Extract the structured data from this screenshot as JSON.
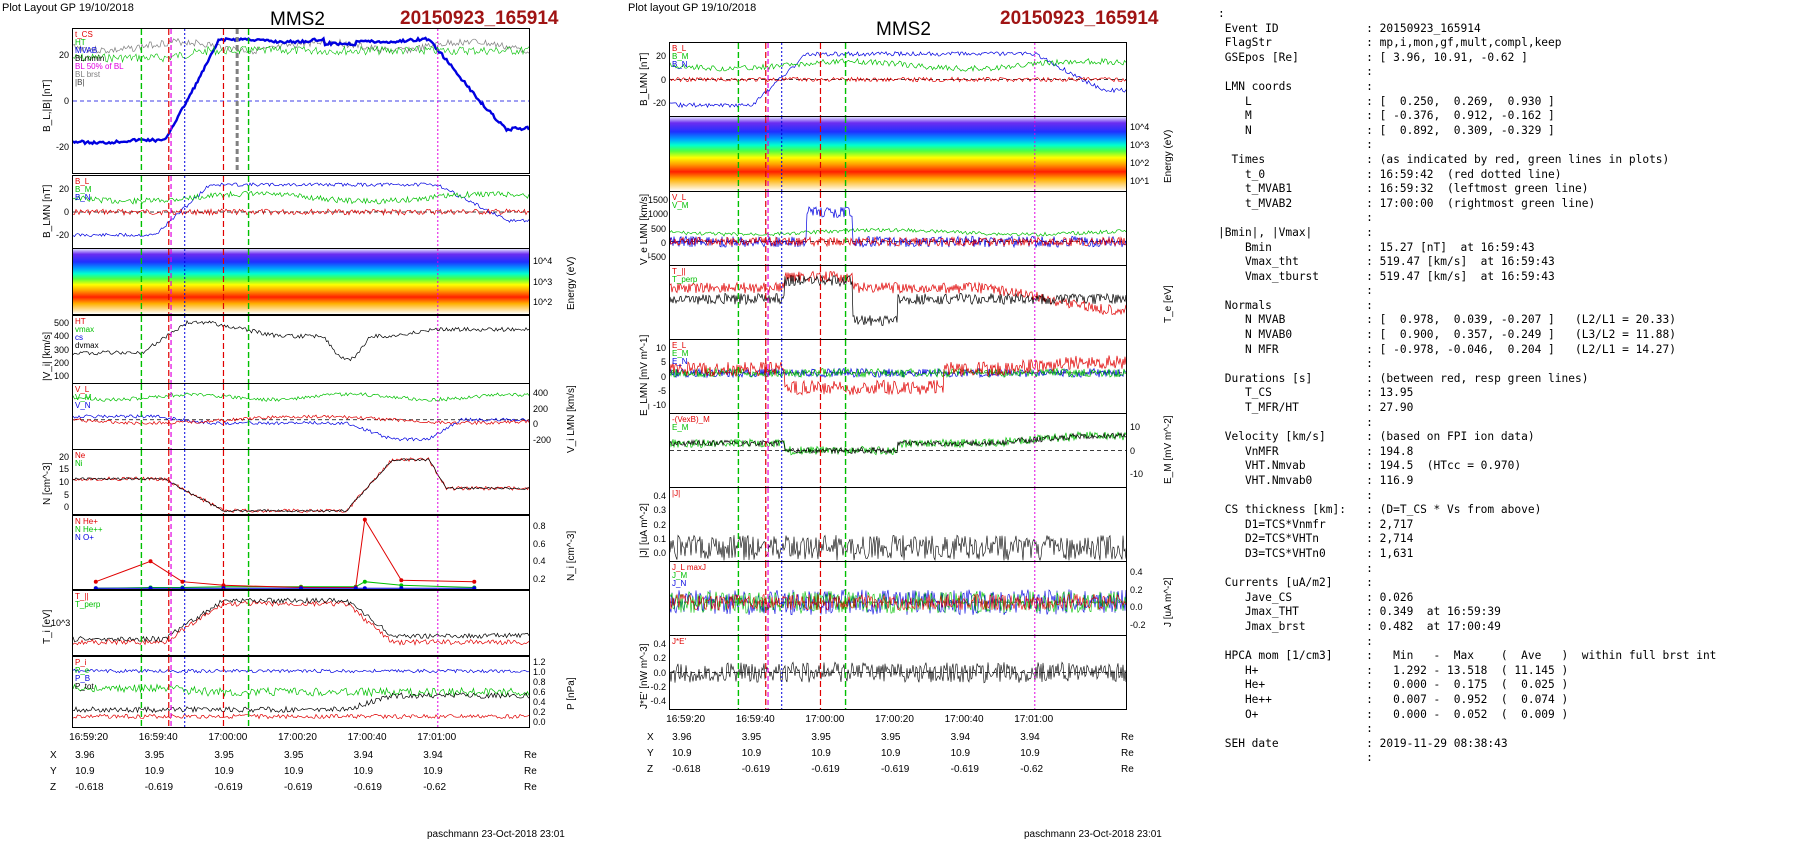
{
  "header": {
    "left_title": "Plot Layout GP 19/10/2018",
    "mid_title": "Plot layout GP 19/10/2018",
    "spacecraft": "MMS2",
    "event": "20150923_165914"
  },
  "colors": {
    "event_red": "#a01414",
    "line_red": "#e00000",
    "line_green": "#00c000",
    "line_blue": "#0000e0",
    "line_black": "#000000",
    "line_magenta": "#e000e0",
    "line_gray": "#808080"
  },
  "chart_data": [
    {
      "panel": "left",
      "type": "line",
      "time_axis": {
        "ticks": [
          "16:59:20",
          "16:59:40",
          "17:00:00",
          "17:00:20",
          "17:00:40",
          "17:01:00"
        ]
      },
      "position_table": {
        "rows": [
          {
            "label": "X",
            "values": [
              "3.96",
              "3.95",
              "3.95",
              "3.95",
              "3.94",
              "3.94"
            ],
            "unit": "Re"
          },
          {
            "label": "Y",
            "values": [
              "10.9",
              "10.9",
              "10.9",
              "10.9",
              "10.9",
              "10.9"
            ],
            "unit": "Re"
          },
          {
            "label": "Z",
            "values": [
              "-0.618",
              "-0.619",
              "-0.619",
              "-0.619",
              "-0.619",
              "-0.62"
            ],
            "unit": "Re"
          }
        ]
      },
      "subplots": [
        {
          "id": "bl",
          "ylabel": "B_L,|B| [nT]",
          "ylim": [
            -30,
            35
          ],
          "ticks": [
            "20",
            "0",
            "-20"
          ],
          "legend": [
            "t_CS",
            "HT",
            "MVAB",
            "BLmmin",
            "BL 50% of BL",
            "BL brst",
            "|B|"
          ]
        },
        {
          "id": "blmn",
          "ylabel": "B_LMN [nT]",
          "ylim": [
            -30,
            35
          ],
          "ticks": [
            "20",
            "0",
            "-20"
          ],
          "legend": [
            "B_L",
            "B_M",
            "B_N"
          ]
        },
        {
          "id": "spec",
          "ylabel_right": "Energy (eV)",
          "ticks_right": [
            "10^4",
            "10^3",
            "10^2"
          ]
        },
        {
          "id": "vi",
          "ylabel": "|V_i| [km/s]",
          "ylim": [
            0,
            520
          ],
          "ticks": [
            "500",
            "400",
            "300",
            "200",
            "100"
          ],
          "legend": [
            "HT",
            "vmax",
            "cs",
            "dvmax"
          ]
        },
        {
          "id": "vlmn",
          "ylabel_right": "V_i LMN [km/s]",
          "ticks_right": [
            "400",
            "200",
            "0",
            "-200"
          ],
          "legend": [
            "V_L",
            "V_M",
            "V_N"
          ]
        },
        {
          "id": "n",
          "ylabel": "N [cm^-3]",
          "ylim": [
            0,
            22
          ],
          "ticks": [
            "20",
            "15",
            "10",
            "5",
            "0"
          ],
          "legend": [
            "Ne",
            "Ni"
          ]
        },
        {
          "id": "ni",
          "ylabel_right": "N_i [cm^-3]",
          "ylim": [
            0,
            1.0
          ],
          "ticks_right": [
            "0.8",
            "0.6",
            "0.4",
            "0.2"
          ],
          "legend": [
            "N He+",
            "N He++",
            "N O+"
          ],
          "series": [
            {
              "name": "N He+",
              "x": [
                1,
                2,
                3,
                4,
                5,
                6,
                7,
                8,
                9
              ],
              "values": [
                0.01,
                0.02,
                0.02,
                0.03,
                0.03,
                0.03,
                0.1,
                0.05,
                0.02
              ]
            },
            {
              "name": "N He++",
              "x": [
                1,
                2,
                3,
                4,
                5,
                6,
                7,
                8,
                9
              ],
              "values": [
                0.1,
                0.38,
                0.1,
                0.05,
                0.02,
                0.02,
                0.95,
                0.12,
                0.1
              ]
            },
            {
              "name": "N O+",
              "x": [
                1,
                2,
                3,
                4,
                5,
                6,
                7,
                8,
                9
              ],
              "values": [
                0.01,
                0.01,
                0.01,
                0.01,
                0.01,
                0.01,
                0.01,
                0.01,
                0.01
              ]
            }
          ]
        },
        {
          "id": "ti",
          "ylabel": "T_i [eV]",
          "ticks": [
            "10^3"
          ],
          "legend": [
            "T_||",
            "T_perp"
          ]
        },
        {
          "id": "p",
          "ylabel_right": "P [nPa]",
          "ylim": [
            0,
            1.2
          ],
          "ticks_right": [
            "1.2",
            "1.0",
            "0.8",
            "0.6",
            "0.4",
            "0.2",
            "0.0"
          ],
          "legend": [
            "P_i",
            "P_e",
            "P_B",
            "P_tot"
          ]
        }
      ]
    },
    {
      "panel": "middle",
      "type": "line",
      "time_axis": {
        "ticks": [
          "16:59:20",
          "16:59:40",
          "17:00:00",
          "17:00:20",
          "17:00:40",
          "17:01:00"
        ]
      },
      "position_table": {
        "rows": [
          {
            "label": "X",
            "values": [
              "3.96",
              "3.95",
              "3.95",
              "3.95",
              "3.94",
              "3.94"
            ],
            "unit": "Re"
          },
          {
            "label": "Y",
            "values": [
              "10.9",
              "10.9",
              "10.9",
              "10.9",
              "10.9",
              "10.9"
            ],
            "unit": "Re"
          },
          {
            "label": "Z",
            "values": [
              "-0.618",
              "-0.619",
              "-0.619",
              "-0.619",
              "-0.619",
              "-0.62"
            ],
            "unit": "Re"
          }
        ]
      },
      "subplots": [
        {
          "id": "blmn",
          "ylabel": "B_LMN [nT]",
          "ticks": [
            "20",
            "0",
            "-20"
          ],
          "legend": [
            "B_L",
            "B_M",
            "B_N"
          ]
        },
        {
          "id": "spec",
          "ylabel_right": "Energy (eV)",
          "ticks_right": [
            "10^4",
            "10^3",
            "10^2",
            "10^1"
          ]
        },
        {
          "id": "ve",
          "ylabel": "V_e LMN [km/s]",
          "ticks": [
            "1500",
            "1000",
            "500",
            "0",
            "-500"
          ],
          "legend": [
            "V_L",
            "V_M"
          ]
        },
        {
          "id": "te",
          "ylabel_right": "T_e [eV]",
          "legend": [
            "T_||",
            "T_perp"
          ]
        },
        {
          "id": "e",
          "ylabel": "E_LMN [mV m^-1]",
          "ticks": [
            "10",
            "5",
            "0",
            "-5",
            "-10"
          ],
          "legend": [
            "E_L",
            "E_M",
            "E_N"
          ]
        },
        {
          "id": "em",
          "ylabel_right": "E_M [mV m^-2]",
          "ticks_right": [
            "10",
            "0",
            "-10"
          ],
          "legend": [
            "-(VexB)_M",
            "E_M"
          ]
        },
        {
          "id": "j",
          "ylabel": "|J| [uA m^-2]",
          "ticks": [
            "0.4",
            "0.3",
            "0.2",
            "0.1",
            "0.0"
          ],
          "legend": [
            "|J|"
          ]
        },
        {
          "id": "jlmn",
          "ylabel_right": "J [uA m^-2]",
          "ticks_right": [
            "0.4",
            "0.2",
            "0.0",
            "-0.2"
          ],
          "legend": [
            "J_L maxJ",
            "J_M",
            "J_N"
          ]
        },
        {
          "id": "je",
          "ylabel": "J*E' [nW m^-3]",
          "ticks": [
            "0.4",
            "0.2",
            "0.0",
            "-0.2",
            "-0.4"
          ],
          "legend": [
            "J*E'"
          ]
        }
      ]
    }
  ],
  "footer": {
    "left": "paschmann 23-Oct-2018 23:01",
    "mid": "paschmann 23-Oct-2018 23:01"
  },
  "info_text": ":\n Event ID             : 20150923_165914\n FlagStr              : mp,i,mon,gf,mult,compl,keep\n GSEpos [Re]          : [ 3.96, 10.91, -0.62 ]\n                      :\n LMN coords           :\n    L                 : [  0.250,  0.269,  0.930 ]\n    M                 : [ -0.376,  0.912, -0.162 ]\n    N                 : [  0.892,  0.309, -0.329 ]\n                      :\n  Times               : (as indicated by red, green lines in plots)\n    t_0               : 16:59:42  (red dotted line)\n    t_MVAB1           : 16:59:32  (leftmost green line)\n    t_MVAB2           : 17:00:00  (rightmost green line)\n                      :\n|Bmin|, |Vmax|        :\n    Bmin              : 15.27 [nT]  at 16:59:43\n    Vmax_tht          : 519.47 [km/s]  at 16:59:43\n    Vmax_tburst       : 519.47 [km/s]  at 16:59:43\n                      :\n Normals              :\n    N MVAB            : [  0.978,  0.039, -0.207 ]   (L2/L1 = 20.33)\n    N MVAB0           : [  0.900,  0.357, -0.249 ]   (L3/L2 = 11.88)\n    N MFR             : [ -0.978, -0.046,  0.204 ]   (L2/L1 = 14.27)\n                      :\n Durations [s]        : (between red, resp green lines)\n    T_CS              : 13.95\n    T_MFR/HT          : 27.90\n                      :\n Velocity [km/s]      : (based on FPI ion data)\n    VnMFR             : 194.8\n    VHT.Nmvab         : 194.5  (HTcc = 0.970)\n    VHT.Nmvab0        : 116.9\n                      :\n CS thickness [km]:   : (D=T_CS * Vs from above)\n    D1=TCS*Vnmfr      : 2,717\n    D2=TCS*VHTn       : 2,714\n    D3=TCS*VHTn0      : 1,631\n                      :\n Currents [uA/m2]     :\n    Jave_CS           : 0.026\n    Jmax_THT          : 0.349  at 16:59:39\n    Jmax_brst         : 0.482  at 17:00:49\n                      :\n HPCA mom [1/cm3]     :   Min   -  Max    (  Ave   )  within full brst int\n    H+                :   1.292 - 13.518  ( 11.145 )\n    He+               :   0.000 -  0.175  (  0.025 )\n    He++              :   0.007 -  0.952  (  0.074 )\n    O+                :   0.000 -  0.052  (  0.009 )\n                      :\n SEH date             : 2019-11-29 08:38:43\n                      :"
}
